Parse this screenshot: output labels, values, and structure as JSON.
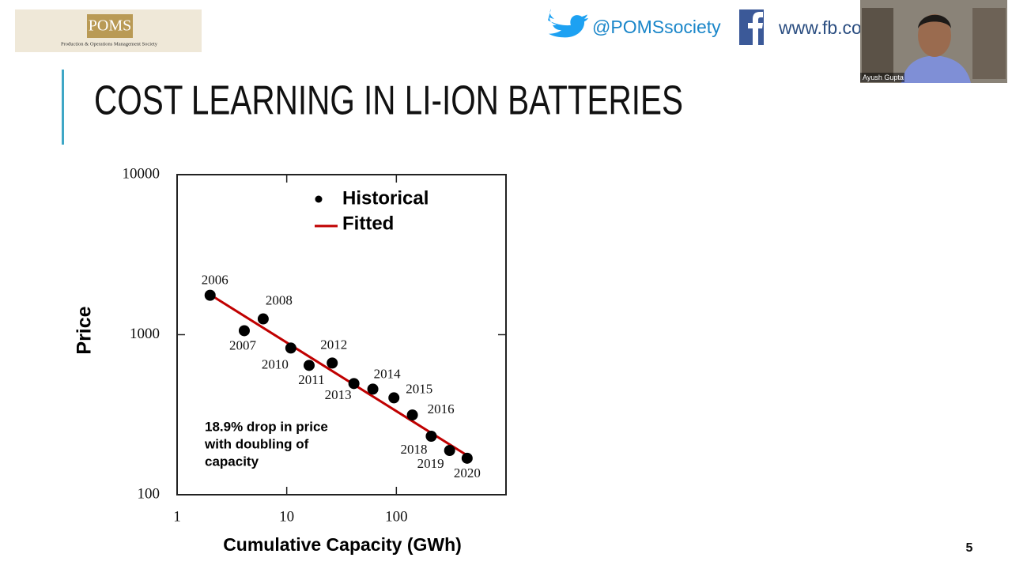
{
  "header": {
    "logo": "POMS",
    "society": "Production & Operations Management Society",
    "twitter": "@POMSsociety",
    "facebook": "www.fb.co"
  },
  "slide": {
    "title": "COST LEARNING IN LI-ION BATTERIES",
    "page": "5"
  },
  "video": {
    "name": "Ayush Gupta"
  },
  "chart_data": {
    "type": "scatter",
    "x_label": "Cumulative Capacity (GWh)",
    "y_label": "Price",
    "log_x": true,
    "log_y": true,
    "xlim": [
      1,
      1000
    ],
    "xticks": [
      1,
      10,
      100
    ],
    "ylim": [
      100,
      10000
    ],
    "yticks": [
      100,
      1000,
      10000
    ],
    "series": [
      {
        "name": "Historical",
        "color": "#000000",
        "kind": "points",
        "x": [
          2.0,
          4.1,
          6.1,
          10.9,
          16,
          26,
          41,
          61,
          95,
          140,
          208,
          306,
          442
        ],
        "values": [
          1763,
          1059,
          1255,
          825,
          643,
          665,
          495,
          457,
          403,
          315,
          232,
          189,
          169
        ],
        "labels": [
          "2006",
          "2007",
          "2008",
          "2010",
          "2011",
          "2012",
          "2013",
          "2014",
          "2015",
          "2016",
          "2018",
          "2019",
          "2020"
        ]
      },
      {
        "name": "Fitted",
        "color": "#c00000",
        "kind": "line",
        "x": [
          2.0,
          442
        ],
        "values": [
          1780,
          176
        ]
      }
    ],
    "annotation": [
      "18.9% drop in price",
      "with doubling of",
      "capacity"
    ],
    "legend": "upper-right"
  }
}
